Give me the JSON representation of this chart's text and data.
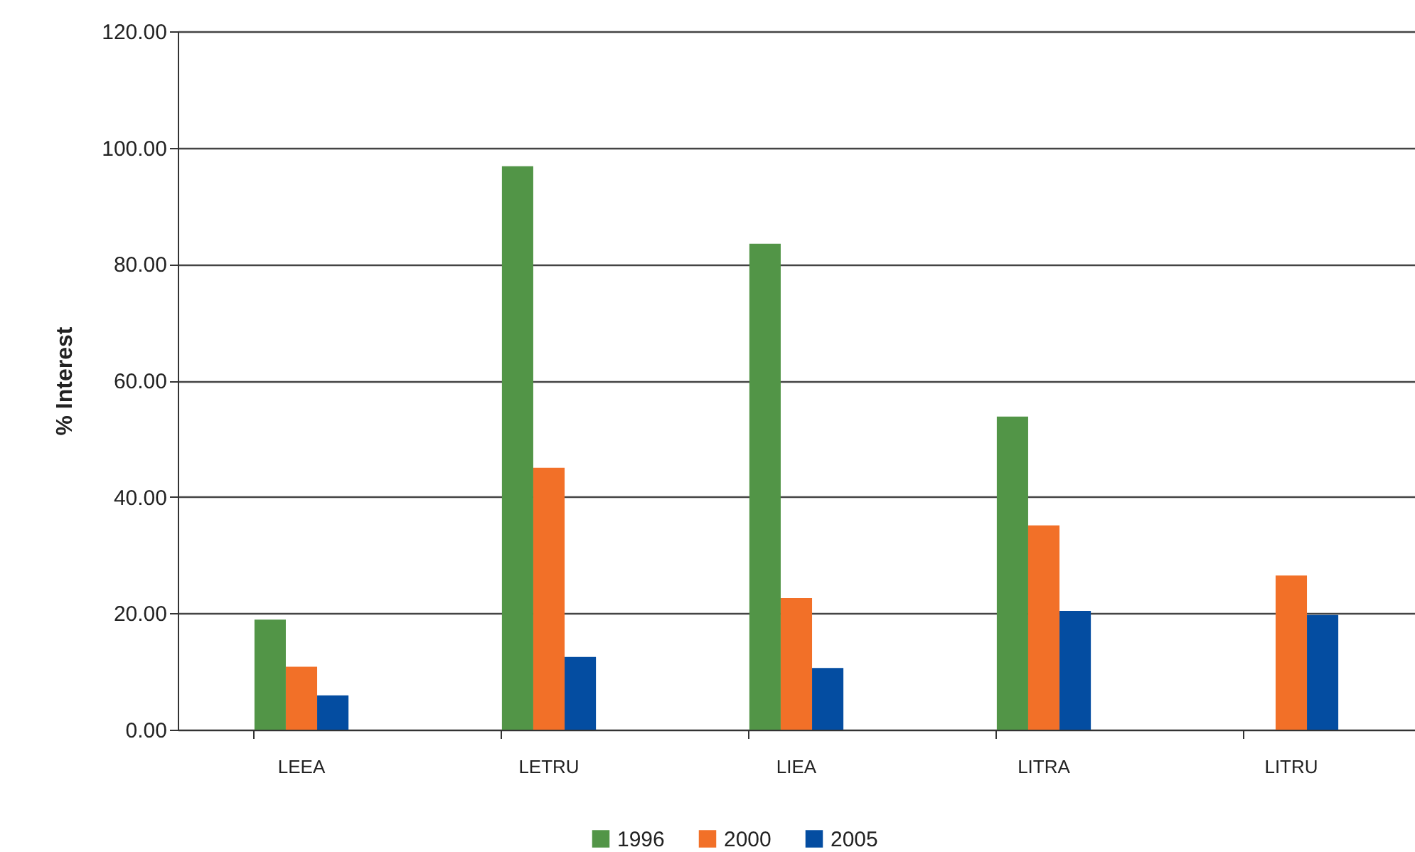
{
  "chart_data": {
    "type": "bar",
    "ylabel": "% Interest",
    "categories": [
      "LEEA",
      "LETRU",
      "LIEA",
      "LITRA",
      "LITRU"
    ],
    "series": [
      {
        "name": "1996",
        "color": "#529547",
        "values": [
          18.9,
          96.8,
          83.5,
          53.8,
          null
        ]
      },
      {
        "name": "2000",
        "color": "#f27028",
        "values": [
          10.8,
          45.0,
          22.6,
          35.1,
          26.5
        ]
      },
      {
        "name": "2005",
        "color": "#044da1",
        "values": [
          5.9,
          12.5,
          10.6,
          20.4,
          19.7
        ]
      }
    ],
    "ylim": [
      0,
      120
    ],
    "yticks": [
      {
        "value": 0,
        "label": "0.00"
      },
      {
        "value": 20,
        "label": "20.00"
      },
      {
        "value": 40,
        "label": "40.00"
      },
      {
        "value": 60,
        "label": "60.00"
      },
      {
        "value": 80,
        "label": "80.00"
      },
      {
        "value": 100,
        "label": "100.00"
      },
      {
        "value": 120,
        "label": "120.00"
      }
    ],
    "grid": "y",
    "legend": "bottom"
  }
}
